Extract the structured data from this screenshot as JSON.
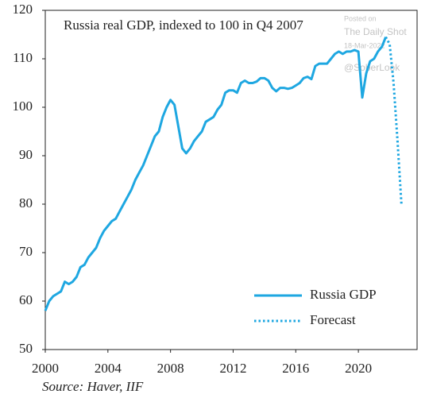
{
  "chart_data": {
    "type": "line",
    "title": "Russia real GDP, indexed to 100 in Q4 2007",
    "source": "Source: Haver, IIF",
    "watermark": [
      "Posted on",
      "The Daily Shot",
      "18-Mar-2022",
      "@SoberLook"
    ],
    "xlim": [
      2000,
      2023.75
    ],
    "xticks": [
      2000,
      2004,
      2008,
      2012,
      2016,
      2020
    ],
    "ylim": [
      50,
      120
    ],
    "yticks": [
      50,
      60,
      70,
      80,
      90,
      100,
      110,
      120
    ],
    "series": [
      {
        "name": "Russia GDP",
        "color": "#1ea7e1",
        "style": "solid",
        "x": [
          2000,
          2000.25,
          2000.5,
          2000.75,
          2001,
          2001.25,
          2001.5,
          2001.75,
          2002,
          2002.25,
          2002.5,
          2002.75,
          2003,
          2003.25,
          2003.5,
          2003.75,
          2004,
          2004.25,
          2004.5,
          2004.75,
          2005,
          2005.25,
          2005.5,
          2005.75,
          2006,
          2006.25,
          2006.5,
          2006.75,
          2007,
          2007.25,
          2007.5,
          2007.75,
          2008,
          2008.25,
          2008.5,
          2008.75,
          2009,
          2009.25,
          2009.5,
          2009.75,
          2010,
          2010.25,
          2010.5,
          2010.75,
          2011,
          2011.25,
          2011.5,
          2011.75,
          2012,
          2012.25,
          2012.5,
          2012.75,
          2013,
          2013.25,
          2013.5,
          2013.75,
          2014,
          2014.25,
          2014.5,
          2014.75,
          2015,
          2015.25,
          2015.5,
          2015.75,
          2016,
          2016.25,
          2016.5,
          2016.75,
          2017,
          2017.25,
          2017.5,
          2017.75,
          2018,
          2018.25,
          2018.5,
          2018.75,
          2019,
          2019.25,
          2019.5,
          2019.75,
          2020,
          2020.25,
          2020.5,
          2020.75,
          2021,
          2021.25,
          2021.5,
          2021.75
        ],
        "values": [
          58,
          60,
          61,
          61.5,
          62,
          64,
          63.5,
          64,
          65,
          67,
          67.5,
          69,
          70,
          71,
          73,
          74.5,
          75.5,
          76.5,
          77,
          78.5,
          80,
          81.5,
          83,
          85,
          86.5,
          88,
          90,
          92,
          94,
          95,
          98,
          100,
          101.5,
          100.5,
          96,
          91.5,
          90.5,
          91.5,
          93,
          94,
          95,
          97,
          97.5,
          98,
          99.5,
          100.5,
          103,
          103.5,
          103.5,
          103,
          105,
          105.5,
          105,
          105,
          105.3,
          106,
          106,
          105.5,
          104,
          103.3,
          104,
          104,
          103.8,
          104,
          104.5,
          105,
          106,
          106.3,
          105.8,
          108.5,
          109,
          109,
          109,
          110,
          111,
          111.5,
          111,
          111.5,
          111.5,
          111.8,
          111.5,
          102,
          107,
          109.5,
          110,
          111.5,
          112.5,
          114.5
        ]
      },
      {
        "name": "Forecast",
        "color": "#1ea7e1",
        "style": "dotted",
        "x": [
          2021.75,
          2022,
          2022.25,
          2022.5,
          2022.75
        ],
        "values": [
          114.5,
          113,
          105,
          93,
          80
        ]
      }
    ]
  }
}
